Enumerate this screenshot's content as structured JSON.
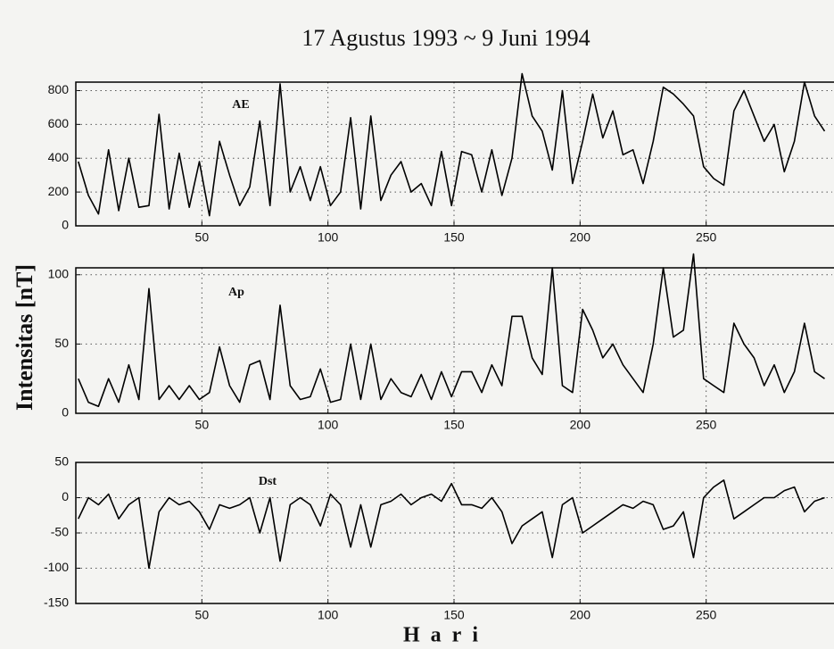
{
  "title": "17 Agustus 1993 ~ 9 Juni 1994",
  "ylabel": "Intensitas [nT]",
  "xlabel": "Hari",
  "chart_data": [
    {
      "type": "line",
      "xlim": [
        0,
        300
      ],
      "xticks": [
        50,
        100,
        150,
        200,
        250
      ],
      "ylim": [
        0,
        850
      ],
      "yticks": [
        0,
        200,
        400,
        600,
        800
      ],
      "grid": true,
      "x": [
        1,
        5,
        9,
        13,
        17,
        21,
        25,
        29,
        33,
        37,
        41,
        45,
        49,
        53,
        57,
        61,
        65,
        69,
        73,
        77,
        81,
        85,
        89,
        93,
        97,
        101,
        105,
        109,
        113,
        117,
        121,
        125,
        129,
        133,
        137,
        141,
        145,
        149,
        153,
        157,
        161,
        165,
        169,
        173,
        177,
        181,
        185,
        189,
        193,
        197,
        201,
        205,
        209,
        213,
        217,
        221,
        225,
        229,
        233,
        237,
        241,
        245,
        249,
        253,
        257,
        261,
        265,
        269,
        273,
        277,
        281,
        285,
        289,
        293,
        297
      ],
      "series": [
        {
          "name": "AE",
          "color": "#000000",
          "values": [
            380,
            180,
            70,
            450,
            90,
            400,
            110,
            120,
            660,
            100,
            430,
            110,
            380,
            60,
            500,
            300,
            120,
            230,
            620,
            120,
            840,
            200,
            350,
            150,
            350,
            120,
            200,
            640,
            100,
            650,
            150,
            300,
            380,
            200,
            250,
            120,
            440,
            120,
            440,
            420,
            200,
            450,
            180,
            400,
            900,
            650,
            560,
            330,
            800,
            250,
            500,
            780,
            520,
            680,
            420,
            450,
            250,
            500,
            820,
            780,
            720,
            650,
            350,
            280,
            240,
            680,
            800,
            650,
            500,
            600,
            320,
            500,
            850,
            650,
            560
          ]
        }
      ]
    },
    {
      "type": "line",
      "xlim": [
        0,
        300
      ],
      "xticks": [
        50,
        100,
        150,
        200,
        250
      ],
      "ylim": [
        0,
        105
      ],
      "yticks": [
        0,
        50,
        100
      ],
      "grid": true,
      "x": [
        1,
        5,
        9,
        13,
        17,
        21,
        25,
        29,
        33,
        37,
        41,
        45,
        49,
        53,
        57,
        61,
        65,
        69,
        73,
        77,
        81,
        85,
        89,
        93,
        97,
        101,
        105,
        109,
        113,
        117,
        121,
        125,
        129,
        133,
        137,
        141,
        145,
        149,
        153,
        157,
        161,
        165,
        169,
        173,
        177,
        181,
        185,
        189,
        193,
        197,
        201,
        205,
        209,
        213,
        217,
        221,
        225,
        229,
        233,
        237,
        241,
        245,
        249,
        253,
        257,
        261,
        265,
        269,
        273,
        277,
        281,
        285,
        289,
        293,
        297
      ],
      "series": [
        {
          "name": "Ap",
          "color": "#000000",
          "values": [
            25,
            8,
            5,
            25,
            8,
            35,
            10,
            90,
            10,
            20,
            10,
            20,
            10,
            15,
            48,
            20,
            8,
            35,
            38,
            10,
            78,
            20,
            10,
            12,
            32,
            8,
            10,
            50,
            10,
            50,
            10,
            25,
            15,
            12,
            28,
            10,
            30,
            12,
            30,
            30,
            15,
            35,
            20,
            70,
            70,
            40,
            28,
            105,
            20,
            15,
            75,
            60,
            40,
            50,
            35,
            25,
            15,
            50,
            105,
            55,
            60,
            115,
            25,
            20,
            15,
            65,
            50,
            40,
            20,
            35,
            15,
            30,
            65,
            30,
            25
          ]
        }
      ]
    },
    {
      "type": "line",
      "xlim": [
        0,
        300
      ],
      "xticks": [
        50,
        100,
        150,
        200,
        250
      ],
      "ylim": [
        -150,
        50
      ],
      "yticks": [
        -150,
        -100,
        -50,
        0,
        50
      ],
      "grid": true,
      "x": [
        1,
        5,
        9,
        13,
        17,
        21,
        25,
        29,
        33,
        37,
        41,
        45,
        49,
        53,
        57,
        61,
        65,
        69,
        73,
        77,
        81,
        85,
        89,
        93,
        97,
        101,
        105,
        109,
        113,
        117,
        121,
        125,
        129,
        133,
        137,
        141,
        145,
        149,
        153,
        157,
        161,
        165,
        169,
        173,
        177,
        181,
        185,
        189,
        193,
        197,
        201,
        205,
        209,
        213,
        217,
        221,
        225,
        229,
        233,
        237,
        241,
        245,
        249,
        253,
        257,
        261,
        265,
        269,
        273,
        277,
        281,
        285,
        289,
        293,
        297
      ],
      "series": [
        {
          "name": "Dst",
          "color": "#000000",
          "values": [
            -30,
            0,
            -10,
            5,
            -30,
            -10,
            0,
            -100,
            -20,
            0,
            -10,
            -5,
            -20,
            -45,
            -10,
            -15,
            -10,
            0,
            -50,
            0,
            -90,
            -10,
            0,
            -10,
            -40,
            5,
            -10,
            -70,
            -10,
            -70,
            -10,
            -5,
            5,
            -10,
            0,
            5,
            -5,
            20,
            -10,
            -10,
            -15,
            0,
            -20,
            -65,
            -40,
            -30,
            -20,
            -85,
            -10,
            0,
            -50,
            -40,
            -30,
            -20,
            -10,
            -15,
            -5,
            -10,
            -45,
            -40,
            -20,
            -85,
            0,
            15,
            25,
            -30,
            -20,
            -10,
            0,
            0,
            10,
            15,
            -20,
            -5,
            0
          ]
        }
      ]
    }
  ]
}
